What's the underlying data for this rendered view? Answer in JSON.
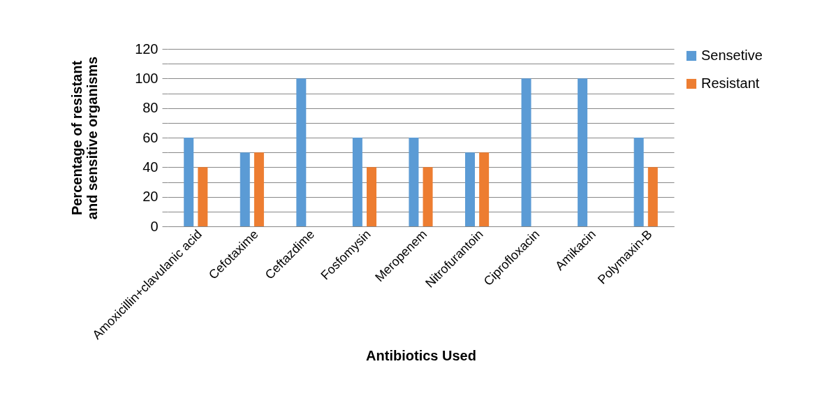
{
  "chart_data": {
    "type": "bar",
    "xlabel": "Antibiotics Used",
    "ylabel": "Percentage of resistant and sensitive organisms",
    "categories": [
      "Amoxicillin+clavulanic acid",
      "Cefotaxime",
      "Ceftazdime",
      "Fosfomysin",
      "Meropenem",
      "Nitrofurantoin",
      "Ciprofloxacin",
      "Amikacin",
      "Polymaxin-B"
    ],
    "series": [
      {
        "name": "Sensetive",
        "color": "#5b9bd5",
        "values": [
          60,
          50,
          100,
          60,
          60,
          50,
          100,
          100,
          60
        ]
      },
      {
        "name": "Resistant",
        "color": "#ed7d31",
        "values": [
          40,
          50,
          0,
          40,
          40,
          50,
          0,
          0,
          40
        ]
      }
    ],
    "ylim": [
      0,
      120
    ],
    "yticks": [
      0,
      {
        "value": 10,
        "label": null
      },
      20,
      {
        "value": 30,
        "label": null
      },
      40,
      {
        "value": 50,
        "label": null
      },
      60,
      {
        "value": 70,
        "label": null
      },
      80,
      {
        "value": 90,
        "label": null
      },
      100,
      {
        "value": 110,
        "label": null
      },
      120
    ],
    "grid": "y",
    "legend": "right"
  }
}
